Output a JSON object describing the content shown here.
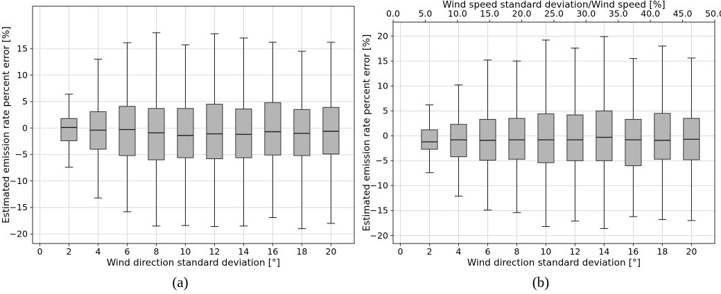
{
  "captions": {
    "a": "(a)",
    "b": "(b)"
  },
  "style": {
    "box_fill": "#b5b5b5",
    "box_edge": "#333333",
    "median": "#1a1a1a",
    "whisker": "#1a1a1a",
    "spine": "#262626",
    "grid_color": "#d2d2d2"
  },
  "chart_data": [
    {
      "type": "box",
      "panel": "a",
      "xlabel": "Wind direction standard deviation [°]",
      "ylabel": "Estimated emission rate percent error [%]",
      "xlim": [
        -0.5,
        21.6
      ],
      "ylim": [
        -21.8,
        23.0
      ],
      "xticks": [
        0,
        2,
        4,
        6,
        8,
        10,
        12,
        14,
        16,
        18,
        20
      ],
      "yticks": [
        -20,
        -15,
        -10,
        -5,
        0,
        5,
        10,
        15
      ],
      "grid": true,
      "box_width": 1.1,
      "cap_width": 0.55,
      "categories": [
        2,
        4,
        6,
        8,
        10,
        12,
        14,
        16,
        18,
        20
      ],
      "boxes": [
        {
          "x": 2,
          "whisker_low": -7.4,
          "q1": -2.4,
          "median": 0.1,
          "q3": 1.8,
          "whisker_high": 6.4
        },
        {
          "x": 4,
          "whisker_low": -13.2,
          "q1": -4.0,
          "median": -0.4,
          "q3": 3.1,
          "whisker_high": 13.0
        },
        {
          "x": 6,
          "whisker_low": -15.8,
          "q1": -5.2,
          "median": -0.3,
          "q3": 4.1,
          "whisker_high": 16.1
        },
        {
          "x": 8,
          "whisker_low": -18.5,
          "q1": -6.0,
          "median": -0.9,
          "q3": 3.7,
          "whisker_high": 18.0
        },
        {
          "x": 10,
          "whisker_low": -18.4,
          "q1": -5.6,
          "median": -1.4,
          "q3": 3.7,
          "whisker_high": 15.7
        },
        {
          "x": 12,
          "whisker_low": -18.6,
          "q1": -5.8,
          "median": -1.1,
          "q3": 4.5,
          "whisker_high": 17.8
        },
        {
          "x": 14,
          "whisker_low": -18.5,
          "q1": -5.6,
          "median": -1.2,
          "q3": 3.6,
          "whisker_high": 17.0
        },
        {
          "x": 16,
          "whisker_low": -16.9,
          "q1": -5.1,
          "median": -0.7,
          "q3": 4.8,
          "whisker_high": 16.2
        },
        {
          "x": 18,
          "whisker_low": -19.0,
          "q1": -5.2,
          "median": -1.0,
          "q3": 3.5,
          "whisker_high": 14.5
        },
        {
          "x": 20,
          "whisker_low": -18.0,
          "q1": -4.9,
          "median": -0.6,
          "q3": 3.9,
          "whisker_high": 16.2
        }
      ]
    },
    {
      "type": "box",
      "panel": "b",
      "xlabel": "Wind direction standard deviation [°]",
      "ylabel": "Estimated emission rate percent error [%]",
      "top_axis": {
        "label": "Wind speed standard deviation/Wind speed [%]",
        "ticks": [
          "0.0",
          "5.0",
          "10.0",
          "15.0",
          "20.0",
          "25.0",
          "30.0",
          "35.0",
          "40.0",
          "45.0",
          "50.0"
        ]
      },
      "xlim": [
        -0.5,
        21.6
      ],
      "ylim": [
        -21.6,
        22.8
      ],
      "xticks": [
        0,
        2,
        4,
        6,
        8,
        10,
        12,
        14,
        16,
        18,
        20
      ],
      "yticks": [
        -20,
        -15,
        -10,
        -5,
        0,
        5,
        10,
        15,
        20
      ],
      "grid": true,
      "box_width": 1.1,
      "cap_width": 0.55,
      "categories": [
        2,
        4,
        6,
        8,
        10,
        12,
        14,
        16,
        18,
        20
      ],
      "boxes": [
        {
          "x": 2,
          "whisker_low": -7.4,
          "q1": -2.7,
          "median": -1.2,
          "q3": 1.2,
          "whisker_high": 6.2
        },
        {
          "x": 4,
          "whisker_low": -12.1,
          "q1": -4.2,
          "median": -0.8,
          "q3": 2.3,
          "whisker_high": 10.2
        },
        {
          "x": 6,
          "whisker_low": -14.9,
          "q1": -4.9,
          "median": -0.9,
          "q3": 3.3,
          "whisker_high": 15.2
        },
        {
          "x": 8,
          "whisker_low": -15.4,
          "q1": -4.7,
          "median": -0.8,
          "q3": 3.5,
          "whisker_high": 15.0
        },
        {
          "x": 10,
          "whisker_low": -18.2,
          "q1": -5.4,
          "median": -0.8,
          "q3": 4.4,
          "whisker_high": 19.2
        },
        {
          "x": 12,
          "whisker_low": -17.1,
          "q1": -5.0,
          "median": -0.8,
          "q3": 4.2,
          "whisker_high": 17.6
        },
        {
          "x": 14,
          "whisker_low": -18.6,
          "q1": -5.0,
          "median": -0.3,
          "q3": 5.0,
          "whisker_high": 19.9
        },
        {
          "x": 16,
          "whisker_low": -16.2,
          "q1": -6.0,
          "median": -0.8,
          "q3": 3.3,
          "whisker_high": 15.5
        },
        {
          "x": 18,
          "whisker_low": -16.8,
          "q1": -4.7,
          "median": -0.9,
          "q3": 4.5,
          "whisker_high": 18.0
        },
        {
          "x": 20,
          "whisker_low": -17.0,
          "q1": -4.8,
          "median": -0.7,
          "q3": 3.5,
          "whisker_high": 15.6
        }
      ]
    }
  ]
}
